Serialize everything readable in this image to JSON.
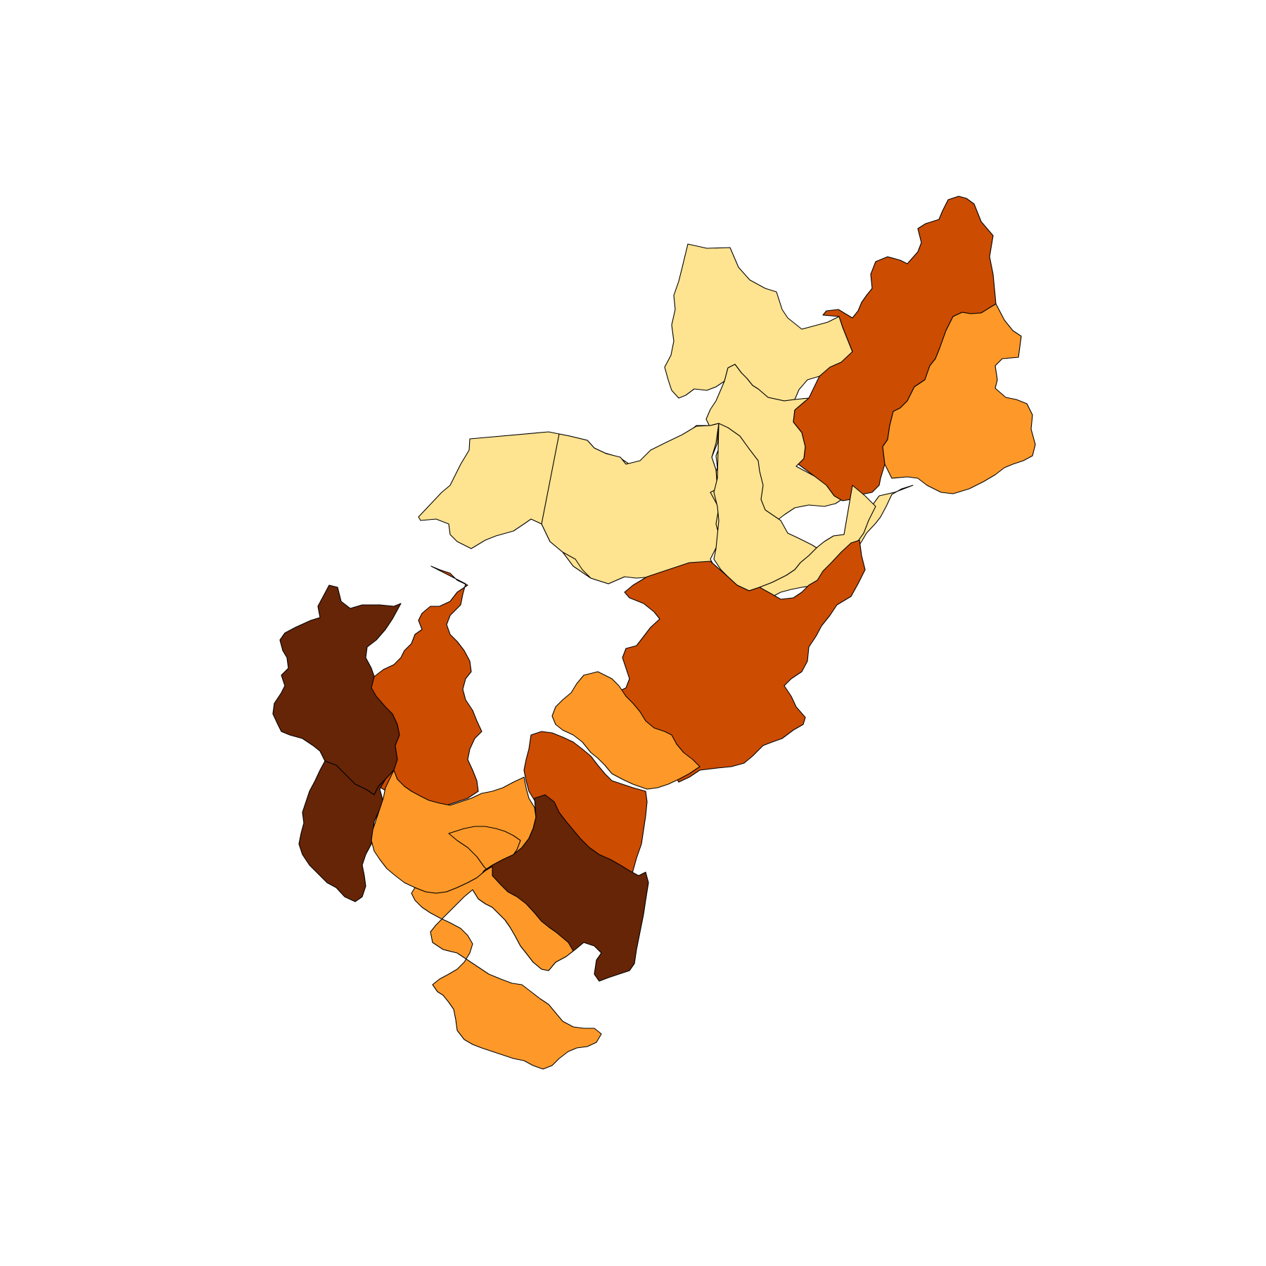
{
  "map": {
    "type": "choropleth",
    "legend": [],
    "palette": {
      "class_1": "#fee391",
      "class_2": "#fe9929",
      "class_3": "#cc4c02",
      "class_4": "#662506"
    },
    "border_color": "#000000",
    "regions": [
      {
        "id": "north-a",
        "class": "class_1"
      },
      {
        "id": "north-b",
        "class": "class_1"
      },
      {
        "id": "north-center",
        "class": "class_1"
      },
      {
        "id": "northeast-a",
        "class": "class_3"
      },
      {
        "id": "northeast-b",
        "class": "class_2"
      },
      {
        "id": "center-north",
        "class": "class_1"
      },
      {
        "id": "center-a",
        "class": "class_1"
      },
      {
        "id": "center-b",
        "class": "class_1"
      },
      {
        "id": "center-c",
        "class": "class_1"
      },
      {
        "id": "center-east",
        "class": "class_3"
      },
      {
        "id": "west-a",
        "class": "class_4"
      },
      {
        "id": "west-b",
        "class": "class_3"
      },
      {
        "id": "southwest-a",
        "class": "class_4"
      },
      {
        "id": "south-center-a",
        "class": "class_2"
      },
      {
        "id": "south-center-b",
        "class": "class_3"
      },
      {
        "id": "south-west-b",
        "class": "class_2"
      },
      {
        "id": "south-west-c",
        "class": "class_2"
      },
      {
        "id": "south-a",
        "class": "class_4"
      },
      {
        "id": "south-b",
        "class": "class_2"
      }
    ]
  }
}
